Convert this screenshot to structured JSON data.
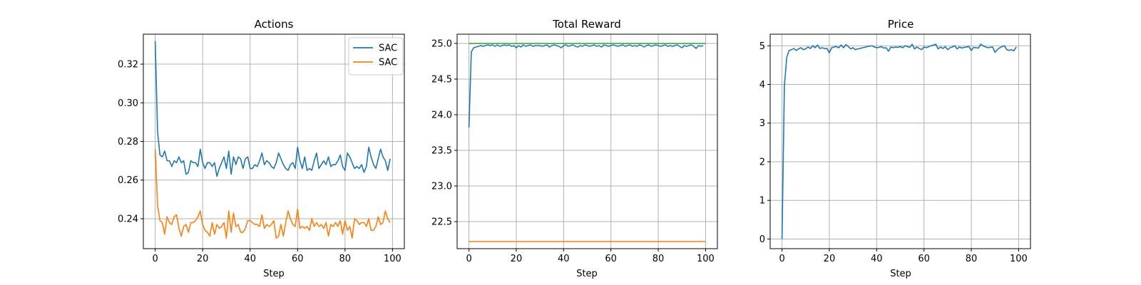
{
  "chart_data": [
    {
      "type": "line",
      "title": "Actions",
      "xlabel": "Step",
      "ylabel": "",
      "xlim": [
        -5,
        105
      ],
      "ylim": [
        0.2245,
        0.3355
      ],
      "xticks": [
        0,
        20,
        40,
        60,
        80,
        100
      ],
      "yticks": [
        0.24,
        0.26,
        0.28,
        0.3,
        0.32
      ],
      "ytick_labels": [
        "0.24",
        "0.26",
        "0.28",
        "0.30",
        "0.32"
      ],
      "grid": true,
      "legend": {
        "placement": "upper right",
        "entries": [
          "SAC",
          "SAC"
        ]
      },
      "series": [
        {
          "name": "SAC",
          "color": "#1f77b4",
          "x": [
            0,
            1,
            2,
            3,
            4,
            5,
            6,
            7,
            8,
            9,
            10,
            11,
            12,
            13,
            14,
            15,
            16,
            17,
            18,
            19,
            20,
            21,
            22,
            23,
            24,
            25,
            26,
            27,
            28,
            29,
            30,
            31,
            32,
            33,
            34,
            35,
            36,
            37,
            38,
            39,
            40,
            41,
            42,
            43,
            44,
            45,
            46,
            47,
            48,
            49,
            50,
            51,
            52,
            53,
            54,
            55,
            56,
            57,
            58,
            59,
            60,
            61,
            62,
            63,
            64,
            65,
            66,
            67,
            68,
            69,
            70,
            71,
            72,
            73,
            74,
            75,
            76,
            77,
            78,
            79,
            80,
            81,
            82,
            83,
            84,
            85,
            86,
            87,
            88,
            89,
            90,
            91,
            92,
            93,
            94,
            95,
            96,
            97,
            98,
            99
          ],
          "y": [
            0.332,
            0.285,
            0.273,
            0.272,
            0.275,
            0.27,
            0.27,
            0.267,
            0.27,
            0.269,
            0.272,
            0.269,
            0.27,
            0.263,
            0.264,
            0.27,
            0.269,
            0.269,
            0.267,
            0.276,
            0.269,
            0.266,
            0.269,
            0.269,
            0.267,
            0.269,
            0.262,
            0.266,
            0.269,
            0.272,
            0.266,
            0.275,
            0.263,
            0.272,
            0.268,
            0.272,
            0.271,
            0.266,
            0.271,
            0.272,
            0.266,
            0.266,
            0.268,
            0.267,
            0.27,
            0.274,
            0.268,
            0.27,
            0.269,
            0.267,
            0.266,
            0.269,
            0.274,
            0.271,
            0.268,
            0.266,
            0.265,
            0.268,
            0.269,
            0.266,
            0.277,
            0.27,
            0.266,
            0.272,
            0.265,
            0.266,
            0.265,
            0.27,
            0.274,
            0.266,
            0.268,
            0.27,
            0.268,
            0.272,
            0.267,
            0.268,
            0.268,
            0.27,
            0.273,
            0.267,
            0.265,
            0.274,
            0.272,
            0.269,
            0.266,
            0.267,
            0.266,
            0.268,
            0.264,
            0.267,
            0.277,
            0.272,
            0.268,
            0.266,
            0.271,
            0.276,
            0.272,
            0.27,
            0.265,
            0.271
          ]
        },
        {
          "name": "SAC",
          "color": "#ff7f0e",
          "x": [
            0,
            1,
            2,
            3,
            4,
            5,
            6,
            7,
            8,
            9,
            10,
            11,
            12,
            13,
            14,
            15,
            16,
            17,
            18,
            19,
            20,
            21,
            22,
            23,
            24,
            25,
            26,
            27,
            28,
            29,
            30,
            31,
            32,
            33,
            34,
            35,
            36,
            37,
            38,
            39,
            40,
            41,
            42,
            43,
            44,
            45,
            46,
            47,
            48,
            49,
            50,
            51,
            52,
            53,
            54,
            55,
            56,
            57,
            58,
            59,
            60,
            61,
            62,
            63,
            64,
            65,
            66,
            67,
            68,
            69,
            70,
            71,
            72,
            73,
            74,
            75,
            76,
            77,
            78,
            79,
            80,
            81,
            82,
            83,
            84,
            85,
            86,
            87,
            88,
            89,
            90,
            91,
            92,
            93,
            94,
            95,
            96,
            97,
            98,
            99
          ],
          "y": [
            0.276,
            0.247,
            0.239,
            0.238,
            0.232,
            0.241,
            0.238,
            0.237,
            0.241,
            0.242,
            0.235,
            0.231,
            0.236,
            0.237,
            0.233,
            0.238,
            0.238,
            0.239,
            0.241,
            0.244,
            0.237,
            0.234,
            0.233,
            0.231,
            0.238,
            0.232,
            0.237,
            0.235,
            0.236,
            0.238,
            0.23,
            0.244,
            0.233,
            0.243,
            0.236,
            0.237,
            0.233,
            0.233,
            0.235,
            0.239,
            0.239,
            0.238,
            0.237,
            0.237,
            0.236,
            0.242,
            0.235,
            0.237,
            0.236,
            0.237,
            0.239,
            0.23,
            0.231,
            0.237,
            0.231,
            0.238,
            0.244,
            0.24,
            0.237,
            0.236,
            0.245,
            0.235,
            0.236,
            0.235,
            0.236,
            0.234,
            0.24,
            0.236,
            0.238,
            0.236,
            0.237,
            0.235,
            0.238,
            0.231,
            0.237,
            0.236,
            0.238,
            0.236,
            0.239,
            0.232,
            0.239,
            0.234,
            0.236,
            0.23,
            0.24,
            0.239,
            0.237,
            0.238,
            0.238,
            0.236,
            0.24,
            0.234,
            0.234,
            0.236,
            0.241,
            0.237,
            0.238,
            0.244,
            0.24,
            0.238
          ]
        }
      ]
    },
    {
      "type": "line",
      "title": "Total Reward",
      "xlabel": "Step",
      "ylabel": "",
      "xlim": [
        -5,
        105
      ],
      "ylim": [
        22.12,
        25.13
      ],
      "xticks": [
        0,
        20,
        40,
        60,
        80,
        100
      ],
      "yticks": [
        22.5,
        23.0,
        23.5,
        24.0,
        24.5,
        25.0
      ],
      "ytick_labels": [
        "22.5",
        "23.0",
        "23.5",
        "24.0",
        "24.5",
        "25.0"
      ],
      "grid": true,
      "series": [
        {
          "color": "#1f77b4",
          "x": [
            0,
            1,
            2,
            3,
            4,
            5,
            6,
            7,
            8,
            9,
            10,
            11,
            12,
            13,
            14,
            15,
            16,
            17,
            18,
            19,
            20,
            21,
            22,
            23,
            24,
            25,
            26,
            27,
            28,
            29,
            30,
            31,
            32,
            33,
            34,
            35,
            36,
            37,
            38,
            39,
            40,
            41,
            42,
            43,
            44,
            45,
            46,
            47,
            48,
            49,
            50,
            51,
            52,
            53,
            54,
            55,
            56,
            57,
            58,
            59,
            60,
            61,
            62,
            63,
            64,
            65,
            66,
            67,
            68,
            69,
            70,
            71,
            72,
            73,
            74,
            75,
            76,
            77,
            78,
            79,
            80,
            81,
            82,
            83,
            84,
            85,
            86,
            87,
            88,
            89,
            90,
            91,
            92,
            93,
            94,
            95,
            96,
            97,
            98,
            99
          ],
          "y": [
            23.82,
            24.88,
            24.94,
            24.95,
            24.96,
            24.97,
            24.96,
            24.97,
            24.98,
            24.97,
            24.98,
            24.96,
            24.98,
            24.96,
            24.97,
            24.98,
            24.97,
            24.98,
            24.96,
            24.97,
            24.94,
            24.97,
            24.95,
            24.98,
            24.96,
            24.97,
            24.98,
            24.96,
            24.97,
            24.97,
            24.97,
            24.96,
            24.97,
            24.98,
            24.95,
            24.97,
            24.98,
            24.97,
            24.96,
            24.94,
            24.97,
            24.98,
            24.96,
            24.97,
            24.98,
            24.96,
            24.95,
            24.97,
            24.96,
            24.98,
            24.97,
            24.96,
            24.97,
            24.98,
            24.96,
            24.97,
            24.95,
            24.98,
            24.97,
            24.96,
            24.97,
            24.98,
            24.97,
            24.96,
            24.97,
            24.98,
            24.96,
            24.97,
            24.98,
            24.96,
            24.97,
            24.96,
            24.98,
            24.97,
            24.95,
            24.97,
            24.98,
            24.96,
            24.97,
            24.98,
            24.97,
            24.96,
            24.97,
            24.98,
            24.96,
            24.97,
            24.96,
            24.97,
            24.98,
            24.96,
            24.94,
            24.97,
            24.96,
            24.97,
            24.98,
            24.96,
            24.93,
            24.97,
            24.96,
            24.97
          ]
        },
        {
          "color": "#ff7f0e",
          "x": [
            0,
            100
          ],
          "y": [
            22.22,
            22.22
          ]
        },
        {
          "color": "#2ca02c",
          "x": [
            0,
            100
          ],
          "y": [
            25.0,
            25.0
          ]
        }
      ]
    },
    {
      "type": "line",
      "title": "Price",
      "xlabel": "Step",
      "ylabel": "",
      "xlim": [
        -5,
        105
      ],
      "ylim": [
        -0.25,
        5.3
      ],
      "xticks": [
        0,
        20,
        40,
        60,
        80,
        100
      ],
      "yticks": [
        0,
        1,
        2,
        3,
        4,
        5
      ],
      "ytick_labels": [
        "0",
        "1",
        "2",
        "3",
        "4",
        "5"
      ],
      "grid": true,
      "series": [
        {
          "color": "#1f77b4",
          "x": [
            0,
            1,
            2,
            3,
            4,
            5,
            6,
            7,
            8,
            9,
            10,
            11,
            12,
            13,
            14,
            15,
            16,
            17,
            18,
            19,
            20,
            21,
            22,
            23,
            24,
            25,
            26,
            27,
            28,
            29,
            30,
            31,
            32,
            33,
            34,
            35,
            36,
            37,
            38,
            39,
            40,
            41,
            42,
            43,
            44,
            45,
            46,
            47,
            48,
            49,
            50,
            51,
            52,
            53,
            54,
            55,
            56,
            57,
            58,
            59,
            60,
            61,
            62,
            63,
            64,
            65,
            66,
            67,
            68,
            69,
            70,
            71,
            72,
            73,
            74,
            75,
            76,
            77,
            78,
            79,
            80,
            81,
            82,
            83,
            84,
            85,
            86,
            87,
            88,
            89,
            90,
            91,
            92,
            93,
            94,
            95,
            96,
            97,
            98,
            99
          ],
          "y": [
            0.0,
            3.95,
            4.7,
            4.88,
            4.9,
            4.93,
            4.88,
            4.92,
            4.95,
            4.9,
            4.92,
            4.97,
            4.93,
            5.0,
            4.95,
            5.02,
            4.93,
            4.95,
            4.93,
            4.93,
            4.82,
            4.95,
            4.97,
            4.98,
            4.95,
            5.02,
            4.95,
            5.03,
            4.98,
            4.92,
            4.95,
            4.9,
            4.92,
            4.93,
            4.95,
            4.96,
            4.98,
            4.99,
            5.0,
            4.97,
            4.95,
            4.96,
            4.98,
            4.94,
            4.95,
            4.86,
            4.97,
            4.95,
            4.97,
            4.96,
            4.98,
            4.95,
            5.0,
            4.98,
            4.96,
            5.04,
            4.92,
            4.97,
            4.93,
            4.9,
            4.97,
            4.95,
            4.98,
            5.0,
            5.02,
            5.04,
            4.92,
            4.97,
            4.93,
            4.98,
            4.9,
            4.95,
            4.97,
            5.0,
            4.92,
            4.97,
            4.94,
            4.96,
            4.97,
            4.98,
            4.88,
            4.96,
            4.95,
            4.94,
            5.04,
            5.0,
            4.97,
            4.95,
            4.96,
            4.97,
            4.83,
            4.9,
            4.95,
            4.98,
            5.0,
            4.9,
            4.88,
            4.9,
            4.87,
            4.97
          ]
        }
      ]
    }
  ]
}
